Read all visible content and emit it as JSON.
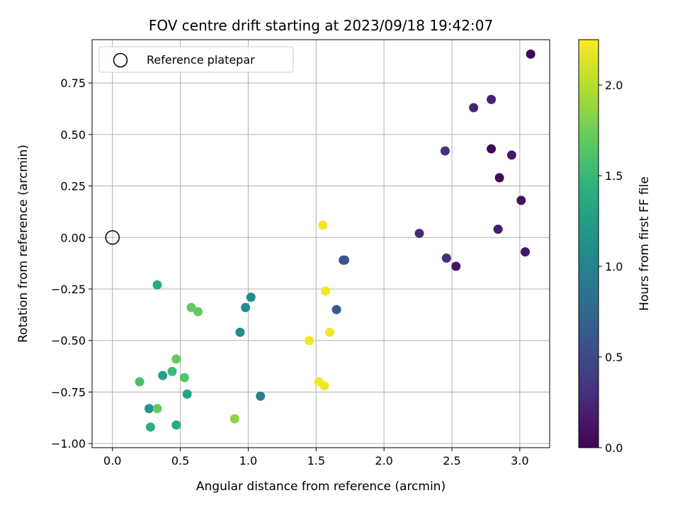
{
  "chart_data": {
    "type": "scatter",
    "title": "FOV centre drift starting at 2023/09/18 19:42:07",
    "xlabel": "Angular distance from reference (arcmin)",
    "ylabel": "Rotation from reference (arcmin)",
    "colorbar_label": "Hours from first FF file",
    "xlim": [
      -0.15,
      3.22
    ],
    "ylim": [
      -1.02,
      0.96
    ],
    "clim": [
      0.0,
      2.25
    ],
    "grid": true,
    "legend_position": "top-left",
    "x_ticks": [
      {
        "value": 0.0,
        "label": "0.0"
      },
      {
        "value": 0.5,
        "label": "0.5"
      },
      {
        "value": 1.0,
        "label": "1.0"
      },
      {
        "value": 1.5,
        "label": "1.5"
      },
      {
        "value": 2.0,
        "label": "2.0"
      },
      {
        "value": 2.5,
        "label": "2.5"
      },
      {
        "value": 3.0,
        "label": "3.0"
      }
    ],
    "y_ticks": [
      {
        "value": -1.0,
        "label": "−1.00"
      },
      {
        "value": -0.75,
        "label": "−0.75"
      },
      {
        "value": -0.5,
        "label": "−0.50"
      },
      {
        "value": -0.25,
        "label": "−0.25"
      },
      {
        "value": 0.0,
        "label": "0.00"
      },
      {
        "value": 0.25,
        "label": "0.25"
      },
      {
        "value": 0.5,
        "label": "0.50"
      },
      {
        "value": 0.75,
        "label": "0.75"
      }
    ],
    "colorbar_ticks": [
      {
        "value": 0.0,
        "label": "0.0"
      },
      {
        "value": 0.5,
        "label": "0.5"
      },
      {
        "value": 1.0,
        "label": "1.0"
      },
      {
        "value": 1.5,
        "label": "1.5"
      },
      {
        "value": 2.0,
        "label": "2.0"
      }
    ],
    "reference": {
      "label": "Reference platepar",
      "x": 0.0,
      "y": 0.0
    },
    "colormap": "viridis",
    "points": [
      {
        "x": 3.08,
        "y": 0.89,
        "t": 0.0
      },
      {
        "x": 2.79,
        "y": 0.43,
        "t": 0.02
      },
      {
        "x": 2.85,
        "y": 0.29,
        "t": 0.03
      },
      {
        "x": 3.01,
        "y": 0.18,
        "t": 0.1
      },
      {
        "x": 3.04,
        "y": -0.07,
        "t": 0.12
      },
      {
        "x": 2.53,
        "y": -0.14,
        "t": 0.12
      },
      {
        "x": 2.94,
        "y": 0.4,
        "t": 0.15
      },
      {
        "x": 2.84,
        "y": 0.04,
        "t": 0.18
      },
      {
        "x": 2.79,
        "y": 0.67,
        "t": 0.22
      },
      {
        "x": 2.66,
        "y": 0.63,
        "t": 0.22
      },
      {
        "x": 2.45,
        "y": 0.42,
        "t": 0.28
      },
      {
        "x": 2.46,
        "y": -0.1,
        "t": 0.28
      },
      {
        "x": 2.26,
        "y": 0.02,
        "t": 0.28
      },
      {
        "x": 1.71,
        "y": -0.11,
        "t": 0.55
      },
      {
        "x": 1.7,
        "y": -0.11,
        "t": 0.55
      },
      {
        "x": 1.65,
        "y": -0.35,
        "t": 0.62
      },
      {
        "x": 1.09,
        "y": -0.77,
        "t": 1.0
      },
      {
        "x": 1.02,
        "y": -0.29,
        "t": 1.08
      },
      {
        "x": 0.98,
        "y": -0.34,
        "t": 1.08
      },
      {
        "x": 0.94,
        "y": -0.46,
        "t": 1.08
      },
      {
        "x": 0.27,
        "y": -0.83,
        "t": 1.15
      },
      {
        "x": 0.37,
        "y": -0.67,
        "t": 1.28
      },
      {
        "x": 0.55,
        "y": -0.76,
        "t": 1.32
      },
      {
        "x": 0.33,
        "y": -0.23,
        "t": 1.38
      },
      {
        "x": 0.47,
        "y": -0.91,
        "t": 1.38
      },
      {
        "x": 0.28,
        "y": -0.92,
        "t": 1.42
      },
      {
        "x": 0.44,
        "y": -0.65,
        "t": 1.52
      },
      {
        "x": 0.2,
        "y": -0.7,
        "t": 1.58
      },
      {
        "x": 0.53,
        "y": -0.68,
        "t": 1.62
      },
      {
        "x": 0.47,
        "y": -0.59,
        "t": 1.7
      },
      {
        "x": 0.33,
        "y": -0.83,
        "t": 1.7
      },
      {
        "x": 0.58,
        "y": -0.34,
        "t": 1.7
      },
      {
        "x": 0.63,
        "y": -0.36,
        "t": 1.7
      },
      {
        "x": 0.9,
        "y": -0.88,
        "t": 1.85
      },
      {
        "x": 1.55,
        "y": 0.06,
        "t": 2.22
      },
      {
        "x": 1.57,
        "y": -0.26,
        "t": 2.22
      },
      {
        "x": 1.6,
        "y": -0.46,
        "t": 2.22
      },
      {
        "x": 1.45,
        "y": -0.5,
        "t": 2.22
      },
      {
        "x": 1.52,
        "y": -0.7,
        "t": 2.22
      },
      {
        "x": 1.56,
        "y": -0.72,
        "t": 2.22
      }
    ]
  }
}
